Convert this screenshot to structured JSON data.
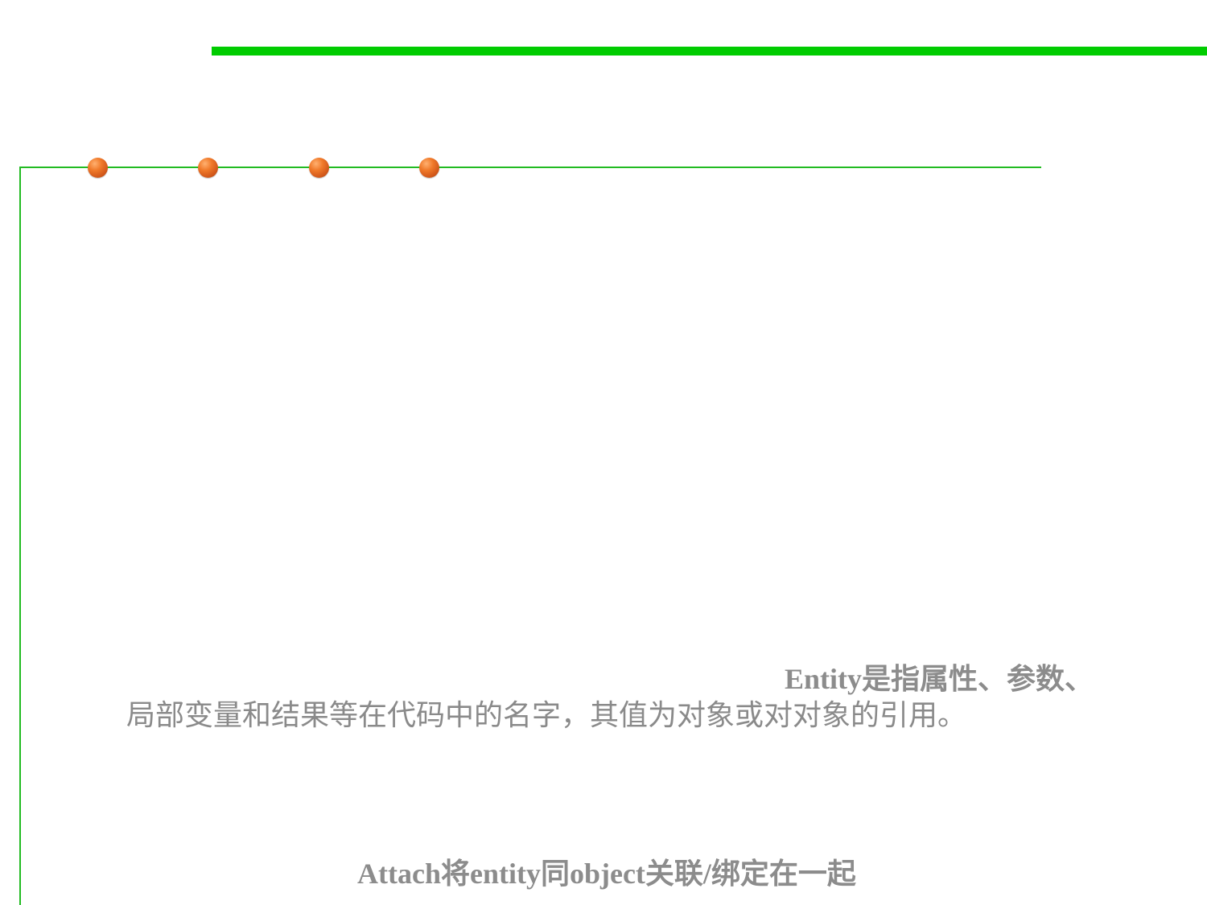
{
  "decoration": {
    "accent_color": "#00cc00",
    "rule_color": "#22bb22",
    "dot_color": "#e8692a",
    "dot_count": 4
  },
  "content": {
    "entity_line_1": "Entity是指属性、参数、",
    "entity_line_2": "局部变量和结果等在代码中的名字，其值为对象或对对象的引用。",
    "attach_line": "Attach将entity同object关联/绑定在一起"
  }
}
